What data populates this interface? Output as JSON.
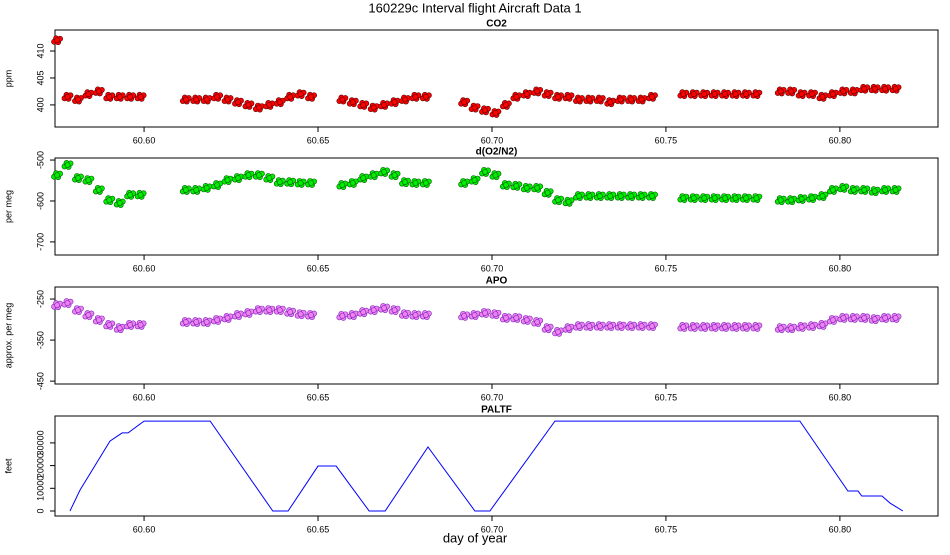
{
  "title": "160229c   Interval flight Aircraft Data 1",
  "chart_data": [
    {
      "type": "scatter",
      "title": "CO2",
      "ylabel": "ppm",
      "color": "#ff0000",
      "edge_color": "#5a0000",
      "xlim": [
        60.5744,
        60.8282
      ],
      "ylim": [
        395.9,
        413.9
      ],
      "xticks": [
        {
          "value": 60.6,
          "label": "60.60"
        },
        {
          "value": 60.65,
          "label": "60.65"
        },
        {
          "value": 60.7,
          "label": "60.70"
        },
        {
          "value": 60.75,
          "label": "60.75"
        },
        {
          "value": 60.8,
          "label": "60.80"
        }
      ],
      "yticks": [
        400,
        405,
        410
      ],
      "x": [
        60.575,
        60.578,
        60.581,
        60.584,
        60.587,
        60.59,
        60.593,
        60.596,
        60.599,
        60.612,
        60.615,
        60.618,
        60.621,
        60.624,
        60.627,
        60.63,
        60.633,
        60.636,
        60.639,
        60.642,
        60.645,
        60.648,
        60.657,
        60.66,
        60.663,
        60.666,
        60.669,
        60.672,
        60.675,
        60.678,
        60.681,
        60.692,
        60.695,
        60.698,
        60.701,
        60.704,
        60.707,
        60.71,
        60.713,
        60.716,
        60.719,
        60.722,
        60.725,
        60.728,
        60.731,
        60.734,
        60.737,
        60.74,
        60.743,
        60.746,
        60.755,
        60.758,
        60.761,
        60.764,
        60.767,
        60.77,
        60.773,
        60.776,
        60.783,
        60.786,
        60.789,
        60.792,
        60.795,
        60.798,
        60.801,
        60.804,
        60.807,
        60.81,
        60.813,
        60.816
      ],
      "values": [
        412,
        401.5,
        401,
        402,
        402.5,
        401.5,
        401.5,
        401.5,
        401.5,
        401,
        401,
        401,
        401.5,
        401,
        400.5,
        400,
        399.5,
        400,
        400.5,
        401.5,
        402,
        401.5,
        401,
        400.5,
        400,
        399.5,
        400,
        400.5,
        401,
        401.5,
        401.5,
        400.5,
        399.5,
        399,
        398.5,
        400,
        401.5,
        402,
        402.5,
        402,
        401.5,
        401.5,
        401,
        401,
        401,
        400.5,
        401,
        401,
        401,
        401.5,
        402,
        402,
        402,
        402,
        402,
        402,
        402,
        402,
        402.5,
        402.5,
        402,
        402,
        401.5,
        402,
        402.5,
        402.5,
        403,
        403,
        403,
        403
      ]
    },
    {
      "type": "scatter",
      "title": "d(O2/N2)",
      "ylabel": "per meg",
      "color": "#00ee00",
      "edge_color": "#005a00",
      "xlim": [
        60.5744,
        60.8282
      ],
      "ylim": [
        -732,
        -495
      ],
      "xticks": [
        {
          "value": 60.6,
          "label": "60.60"
        },
        {
          "value": 60.65,
          "label": "60.65"
        },
        {
          "value": 60.7,
          "label": "60.70"
        },
        {
          "value": 60.75,
          "label": "60.75"
        },
        {
          "value": 60.8,
          "label": "60.80"
        }
      ],
      "yticks": [
        -500,
        -600,
        -700
      ],
      "x": [
        60.575,
        60.578,
        60.581,
        60.584,
        60.587,
        60.59,
        60.593,
        60.596,
        60.599,
        60.612,
        60.615,
        60.618,
        60.621,
        60.624,
        60.627,
        60.63,
        60.633,
        60.636,
        60.639,
        60.642,
        60.645,
        60.648,
        60.657,
        60.66,
        60.663,
        60.666,
        60.669,
        60.672,
        60.675,
        60.678,
        60.681,
        60.692,
        60.695,
        60.698,
        60.701,
        60.704,
        60.707,
        60.71,
        60.713,
        60.716,
        60.719,
        60.722,
        60.725,
        60.728,
        60.731,
        60.734,
        60.737,
        60.74,
        60.743,
        60.746,
        60.755,
        60.758,
        60.761,
        60.764,
        60.767,
        60.77,
        60.773,
        60.776,
        60.783,
        60.786,
        60.789,
        60.792,
        60.795,
        60.798,
        60.801,
        60.804,
        60.807,
        60.81,
        60.813,
        60.816
      ],
      "values": [
        -537,
        -512,
        -544,
        -549,
        -573,
        -598,
        -605,
        -585,
        -585,
        -573,
        -573,
        -568,
        -561,
        -549,
        -544,
        -537,
        -537,
        -544,
        -554,
        -554,
        -556,
        -556,
        -561,
        -556,
        -544,
        -537,
        -529,
        -537,
        -554,
        -556,
        -556,
        -556,
        -549,
        -529,
        -537,
        -561,
        -563,
        -568,
        -568,
        -580,
        -598,
        -602,
        -588,
        -588,
        -588,
        -588,
        -588,
        -588,
        -588,
        -588,
        -593,
        -593,
        -593,
        -593,
        -593,
        -593,
        -593,
        -593,
        -598,
        -598,
        -595,
        -593,
        -588,
        -573,
        -568,
        -573,
        -573,
        -576,
        -573,
        -573
      ]
    },
    {
      "type": "scatter",
      "title": "APO",
      "ylabel": "approx. per meg",
      "color": "#ee82ee",
      "edge_color": "#7a1fc0",
      "xlim": [
        60.5744,
        60.8282
      ],
      "ylim": [
        -457,
        -220.7
      ],
      "xticks": [
        {
          "value": 60.6,
          "label": "60.60"
        },
        {
          "value": 60.65,
          "label": "60.65"
        },
        {
          "value": 60.7,
          "label": "60.70"
        },
        {
          "value": 60.75,
          "label": "60.75"
        },
        {
          "value": 60.8,
          "label": "60.80"
        }
      ],
      "yticks": [
        -250,
        -350,
        -450
      ],
      "x": [
        60.575,
        60.578,
        60.581,
        60.584,
        60.587,
        60.59,
        60.593,
        60.596,
        60.599,
        60.612,
        60.615,
        60.618,
        60.621,
        60.624,
        60.627,
        60.63,
        60.633,
        60.636,
        60.639,
        60.642,
        60.645,
        60.648,
        60.657,
        60.66,
        60.663,
        60.666,
        60.669,
        60.672,
        60.675,
        60.678,
        60.681,
        60.692,
        60.695,
        60.698,
        60.701,
        60.704,
        60.707,
        60.71,
        60.713,
        60.716,
        60.719,
        60.722,
        60.725,
        60.728,
        60.731,
        60.734,
        60.737,
        60.74,
        60.743,
        60.746,
        60.755,
        60.758,
        60.761,
        60.764,
        60.767,
        60.77,
        60.773,
        60.776,
        60.783,
        60.786,
        60.789,
        60.792,
        60.795,
        60.798,
        60.801,
        60.804,
        60.807,
        60.81,
        60.813,
        60.816
      ],
      "values": [
        -265,
        -260,
        -277,
        -289,
        -301,
        -313,
        -321,
        -313,
        -313,
        -306,
        -306,
        -306,
        -301,
        -296,
        -289,
        -284,
        -277,
        -277,
        -277,
        -282,
        -287,
        -289,
        -291,
        -289,
        -282,
        -277,
        -272,
        -277,
        -287,
        -289,
        -289,
        -291,
        -289,
        -284,
        -287,
        -296,
        -296,
        -301,
        -306,
        -321,
        -330,
        -321,
        -316,
        -316,
        -316,
        -316,
        -316,
        -316,
        -316,
        -316,
        -318,
        -318,
        -318,
        -318,
        -318,
        -318,
        -318,
        -318,
        -321,
        -321,
        -318,
        -316,
        -313,
        -301,
        -296,
        -296,
        -296,
        -299,
        -296,
        -296
      ]
    },
    {
      "type": "line",
      "title": "PALTF",
      "ylabel": "feet",
      "xlabel": "day of year",
      "color": "#0000ff",
      "xlim": [
        60.5744,
        60.8282
      ],
      "ylim": [
        -2200,
        41850
      ],
      "xticks": [
        {
          "value": 60.6,
          "label": "60.60"
        },
        {
          "value": 60.65,
          "label": "60.65"
        },
        {
          "value": 60.7,
          "label": "60.70"
        },
        {
          "value": 60.75,
          "label": "60.75"
        },
        {
          "value": 60.8,
          "label": "60.80"
        }
      ],
      "yticks": [
        0,
        10000,
        20000,
        30000
      ],
      "x": [
        60.5787,
        60.5816,
        60.5902,
        60.5937,
        60.5954,
        60.6,
        60.619,
        60.637,
        60.6414,
        60.65,
        60.6552,
        60.6647,
        60.6693,
        60.6816,
        60.6951,
        60.6994,
        60.7181,
        60.7885,
        60.8023,
        60.8052,
        60.8063,
        60.8121,
        60.8144,
        60.8181
      ],
      "values": [
        0,
        9250,
        30800,
        34400,
        34400,
        39600,
        39600,
        0,
        0,
        19800,
        19800,
        0,
        0,
        28200,
        0,
        0,
        39600,
        39600,
        8800,
        8800,
        6600,
        6600,
        3500,
        0
      ]
    }
  ]
}
